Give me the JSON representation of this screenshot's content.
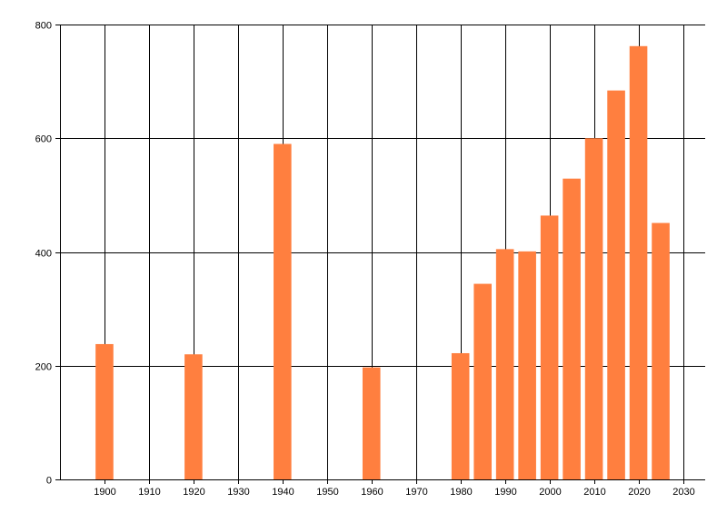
{
  "chart_data": {
    "type": "bar",
    "title": "",
    "xlabel": "",
    "ylabel": "",
    "x": [
      1900,
      1920,
      1940,
      1960,
      1980,
      1985,
      1990,
      1995,
      2000,
      2005,
      2010,
      2015,
      2020,
      2025
    ],
    "values": [
      238,
      220,
      590,
      197,
      222,
      344,
      405,
      401,
      464,
      529,
      600,
      684,
      762,
      451
    ],
    "bar_width_years": 4,
    "xlim": [
      1890,
      2035
    ],
    "ylim": [
      0,
      800
    ],
    "x_ticks": [
      1900,
      1910,
      1920,
      1930,
      1940,
      1950,
      1960,
      1970,
      1980,
      1990,
      2000,
      2010,
      2020,
      2030
    ],
    "y_ticks": [
      0,
      200,
      400,
      600,
      800
    ],
    "grid": true,
    "bar_color": "#ff7f3f",
    "grid_color": "#000000"
  }
}
